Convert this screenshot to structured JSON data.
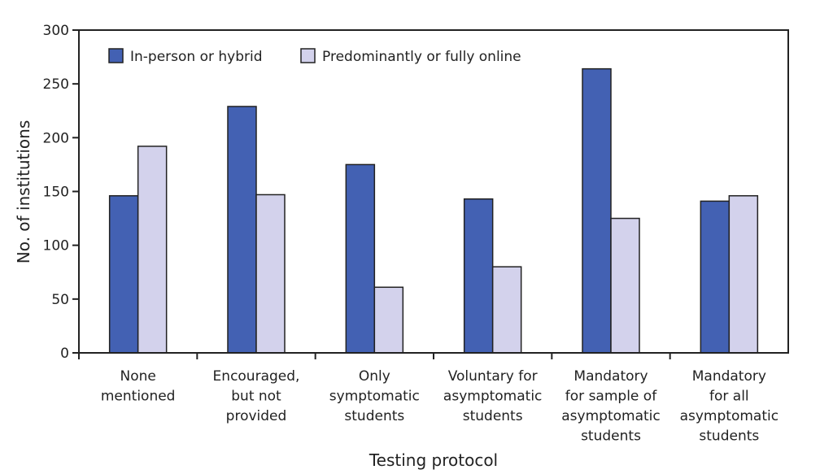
{
  "chart_data": {
    "type": "bar",
    "title": "",
    "xlabel": "Testing protocol",
    "ylabel": "No. of institutions",
    "ylim": [
      0,
      300
    ],
    "yticks": [
      0,
      50,
      100,
      150,
      200,
      250,
      300
    ],
    "grid": false,
    "legend_position": "top-left",
    "categories": [
      [
        "None",
        "mentioned"
      ],
      [
        "Encouraged,",
        "but not",
        "provided"
      ],
      [
        "Only",
        "symptomatic",
        "students"
      ],
      [
        "Voluntary for",
        "asymptomatic",
        "students"
      ],
      [
        "Mandatory",
        "for sample of",
        "asymptomatic",
        "students"
      ],
      [
        "Mandatory",
        "for all",
        "asymptomatic",
        "students"
      ]
    ],
    "series": [
      {
        "name": "In-person or hybrid",
        "color": "#4361b3",
        "values": [
          146,
          229,
          175,
          143,
          264,
          141
        ]
      },
      {
        "name": "Predominantly or fully online",
        "color": "#d3d2ec",
        "values": [
          192,
          147,
          61,
          80,
          125,
          146
        ]
      }
    ]
  }
}
